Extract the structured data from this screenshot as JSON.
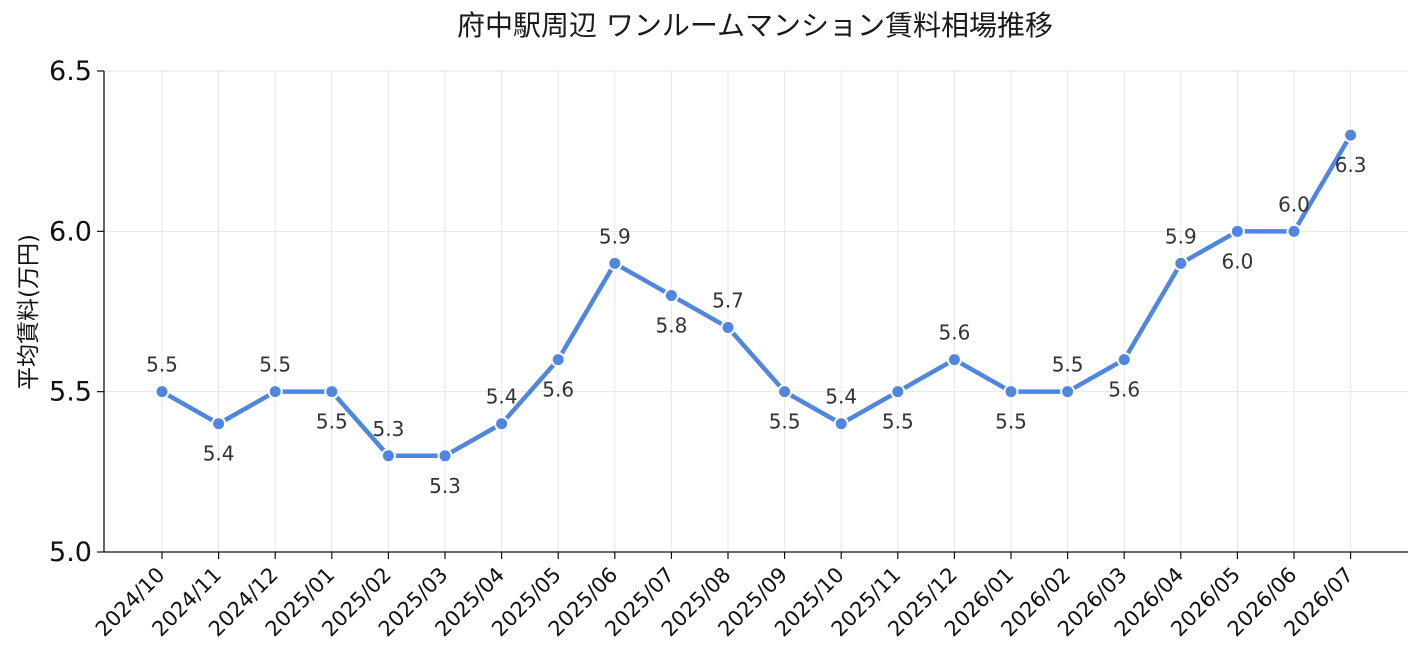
{
  "chart_data": {
    "type": "line",
    "title": "府中駅周辺 ワンルームマンション賃料相場推移",
    "xlabel": "",
    "ylabel": "平均賃料(万円)",
    "categories": [
      "2024/10",
      "2024/11",
      "2024/12",
      "2025/01",
      "2025/02",
      "2025/03",
      "2025/04",
      "2025/05",
      "2025/06",
      "2025/07",
      "2025/08",
      "2025/09",
      "2025/10",
      "2025/11",
      "2025/12",
      "2026/01",
      "2026/02",
      "2026/03",
      "2026/04",
      "2026/05",
      "2026/06",
      "2026/07"
    ],
    "series": [
      {
        "values": [
          5.5,
          5.4,
          5.5,
          5.5,
          5.3,
          5.3,
          5.4,
          5.6,
          5.9,
          5.8,
          5.7,
          5.5,
          5.4,
          5.5,
          5.6,
          5.5,
          5.5,
          5.6,
          5.9,
          6.0,
          6.0,
          6.3
        ],
        "labels": [
          "5.5",
          "5.4",
          "5.5",
          "5.5",
          "5.3",
          "5.3",
          "5.4",
          "5.6",
          "5.9",
          "5.8",
          "5.7",
          "5.5",
          "5.4",
          "5.5",
          "5.6",
          "5.5",
          "5.5",
          "5.6",
          "5.9",
          "6.0",
          "6.0",
          "6.3"
        ],
        "label_position": [
          "above",
          "below",
          "above",
          "below",
          "above",
          "below",
          "above",
          "below",
          "above",
          "below",
          "above",
          "below",
          "above",
          "below",
          "above",
          "below",
          "above",
          "below",
          "above",
          "below",
          "above",
          "below"
        ]
      }
    ],
    "ylim": [
      5.0,
      6.5
    ],
    "yticks": [
      "5.0",
      "5.5",
      "6.0",
      "6.5"
    ],
    "grid": true,
    "legend": "none",
    "line_color": "#4f86e0"
  }
}
